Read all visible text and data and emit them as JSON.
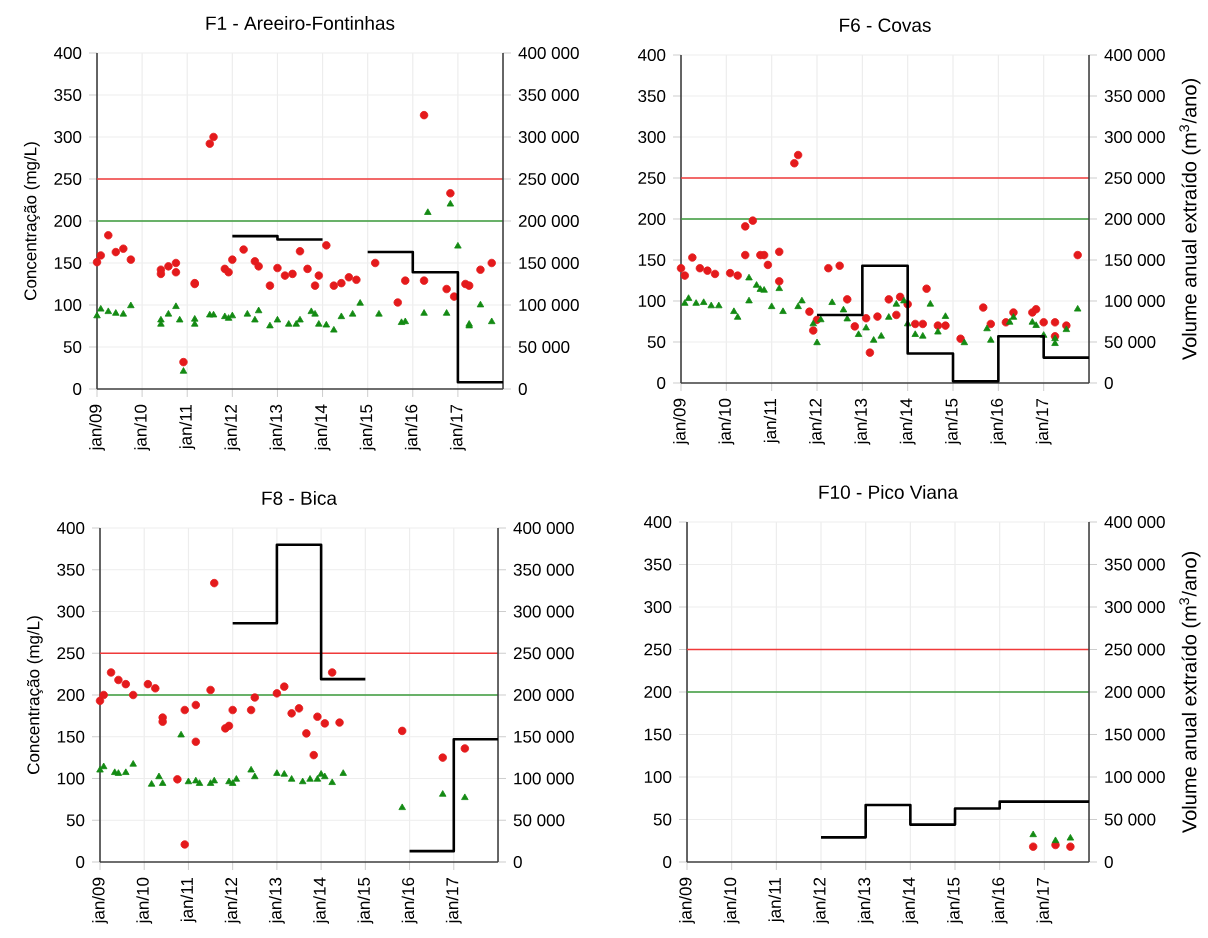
{
  "chart_data": [
    {
      "type": "scatter",
      "title": "F1 - Areeiro-Fontinhas",
      "ylabel": "Concentração (mg/L)",
      "grid": true,
      "xlim": [
        "2009-01",
        "2018-01"
      ],
      "xticks": [
        {
          "value": "2009-01",
          "label": "jan/09"
        },
        {
          "value": "2010-01",
          "label": "jan/10"
        },
        {
          "value": "2011-01",
          "label": "jan/11"
        },
        {
          "value": "2012-01",
          "label": "jan/12"
        },
        {
          "value": "2013-01",
          "label": "jan/13"
        },
        {
          "value": "2014-01",
          "label": "jan/14"
        },
        {
          "value": "2015-01",
          "label": "jan/15"
        },
        {
          "value": "2016-01",
          "label": "jan/16"
        },
        {
          "value": "2017-01",
          "label": "jan/17"
        }
      ],
      "ylim": [
        0,
        400
      ],
      "yticks": [
        0,
        50,
        100,
        150,
        200,
        250,
        300,
        350,
        400
      ],
      "y2lim": [
        0,
        400000
      ],
      "y2ticks": [
        0,
        {
          "value": 50000,
          "label": "50 000"
        },
        {
          "value": 100000,
          "label": "100 000"
        },
        {
          "value": 150000,
          "label": "150 000"
        },
        {
          "value": 200000,
          "label": "200 000"
        },
        {
          "value": 250000,
          "label": "250 000"
        },
        {
          "value": 300000,
          "label": "300 000"
        },
        {
          "value": 350000,
          "label": "350 000"
        },
        {
          "value": 400000,
          "label": "400 000"
        }
      ],
      "ref_lines": [
        {
          "axis": "y",
          "value": 250,
          "color": "#f03a3a"
        },
        {
          "axis": "y",
          "value": 200,
          "color": "#3a9a3a"
        }
      ],
      "series": [
        {
          "color": "#e41a1c",
          "marker": "circle",
          "x": [
            "2009-01",
            "2009-02",
            "2009-04",
            "2009-06",
            "2009-08",
            "2009-10",
            "2010-06",
            "2010-06",
            "2010-08",
            "2010-10",
            "2010-10",
            "2010-12",
            "2011-03",
            "2011-03",
            "2011-07",
            "2011-08",
            "2011-11",
            "2011-12",
            "2012-01",
            "2012-04",
            "2012-07",
            "2012-08",
            "2012-11",
            "2013-01",
            "2013-03",
            "2013-05",
            "2013-07",
            "2013-09",
            "2013-11",
            "2013-12",
            "2014-02",
            "2014-04",
            "2014-06",
            "2014-08",
            "2014-10",
            "2015-03",
            "2015-09",
            "2015-11",
            "2016-04",
            "2016-04",
            "2016-10",
            "2016-11",
            "2016-12",
            "2017-03",
            "2017-04",
            "2017-07",
            "2017-10"
          ],
          "values": [
            151,
            159,
            183,
            163,
            167,
            154,
            142,
            137,
            146,
            150,
            139,
            32,
            125,
            126,
            292,
            300,
            143,
            139,
            154,
            166,
            152,
            146,
            123,
            144,
            135,
            137,
            164,
            143,
            123,
            135,
            171,
            123,
            126,
            133,
            130,
            150,
            103,
            129,
            129,
            326,
            119,
            233,
            110,
            125,
            123,
            142,
            150
          ]
        },
        {
          "color": "#138a13",
          "marker": "triangle",
          "x": [
            "2009-01",
            "2009-02",
            "2009-04",
            "2009-06",
            "2009-08",
            "2009-10",
            "2010-06",
            "2010-06",
            "2010-08",
            "2010-10",
            "2010-11",
            "2010-12",
            "2011-03",
            "2011-03",
            "2011-07",
            "2011-08",
            "2011-11",
            "2011-12",
            "2012-01",
            "2012-05",
            "2012-07",
            "2012-08",
            "2012-11",
            "2013-01",
            "2013-04",
            "2013-06",
            "2013-07",
            "2013-10",
            "2013-11",
            "2013-12",
            "2014-02",
            "2014-04",
            "2014-06",
            "2014-09",
            "2014-11",
            "2015-04",
            "2015-10",
            "2015-11",
            "2016-04",
            "2016-05",
            "2016-10",
            "2016-11",
            "2017-01",
            "2017-04",
            "2017-04",
            "2017-07",
            "2017-10"
          ],
          "values": [
            87,
            95,
            92,
            90,
            89,
            99,
            82,
            77,
            89,
            98,
            82,
            21,
            83,
            77,
            88,
            88,
            86,
            84,
            87,
            89,
            82,
            93,
            75,
            82,
            77,
            77,
            82,
            92,
            89,
            77,
            76,
            70,
            86,
            89,
            102,
            89,
            79,
            80,
            90,
            210,
            90,
            220,
            170,
            75,
            77,
            100,
            80
          ]
        },
        {
          "type": "step",
          "axis": "y2",
          "color": "#000000",
          "x": [
            "2012-01",
            "2013-01",
            "2014-01",
            "2015-01",
            "2016-01",
            "2017-01",
            "2018-01"
          ],
          "values": [
            182000,
            178000,
            null,
            163000,
            139000,
            8000,
            8000
          ]
        }
      ]
    },
    {
      "type": "scatter",
      "title": "F6 - Covas",
      "y2label": "Volume anual extraído (m$^{3}$/ano)",
      "grid": true,
      "xlim": [
        "2009-01",
        "2018-01"
      ],
      "xticks": [
        {
          "value": "2009-01",
          "label": "jan/09"
        },
        {
          "value": "2010-01",
          "label": "jan/10"
        },
        {
          "value": "2011-01",
          "label": "jan/11"
        },
        {
          "value": "2012-01",
          "label": "jan/12"
        },
        {
          "value": "2013-01",
          "label": "jan/13"
        },
        {
          "value": "2014-01",
          "label": "jan/14"
        },
        {
          "value": "2015-01",
          "label": "jan/15"
        },
        {
          "value": "2016-01",
          "label": "jan/16"
        },
        {
          "value": "2017-01",
          "label": "jan/17"
        }
      ],
      "ylim": [
        0,
        400
      ],
      "yticks": [
        0,
        50,
        100,
        150,
        200,
        250,
        300,
        350,
        400
      ],
      "y2lim": [
        0,
        400000
      ],
      "y2ticks": [
        0,
        {
          "value": 50000,
          "label": "50 000"
        },
        {
          "value": 100000,
          "label": "100 000"
        },
        {
          "value": 150000,
          "label": "150 000"
        },
        {
          "value": 200000,
          "label": "200 000"
        },
        {
          "value": 250000,
          "label": "250 000"
        },
        {
          "value": 300000,
          "label": "300 000"
        },
        {
          "value": 350000,
          "label": "350 000"
        },
        {
          "value": 400000,
          "label": "400 000"
        }
      ],
      "ref_lines": [
        {
          "axis": "y",
          "value": 250,
          "color": "#f03a3a"
        },
        {
          "axis": "y",
          "value": 200,
          "color": "#3a9a3a"
        }
      ],
      "series": [
        {
          "color": "#e41a1c",
          "marker": "circle",
          "x": [
            "2009-01",
            "2009-02",
            "2009-04",
            "2009-06",
            "2009-08",
            "2009-10",
            "2010-02",
            "2010-04",
            "2010-06",
            "2010-06",
            "2010-08",
            "2010-10",
            "2010-11",
            "2010-12",
            "2011-03",
            "2011-03",
            "2011-07",
            "2011-08",
            "2011-11",
            "2011-12",
            "2012-01",
            "2012-04",
            "2012-07",
            "2012-09",
            "2012-11",
            "2013-02",
            "2013-03",
            "2013-05",
            "2013-08",
            "2013-10",
            "2013-11",
            "2014-01",
            "2014-03",
            "2014-05",
            "2014-06",
            "2014-09",
            "2014-11",
            "2015-03",
            "2015-09",
            "2015-11",
            "2016-03",
            "2016-05",
            "2016-10",
            "2016-11",
            "2017-01",
            "2017-04",
            "2017-04",
            "2017-07",
            "2017-10"
          ],
          "values": [
            140,
            131,
            153,
            140,
            137,
            133,
            134,
            131,
            191,
            156,
            198,
            156,
            156,
            144,
            160,
            124,
            268,
            278,
            87,
            64,
            77,
            140,
            143,
            102,
            69,
            79,
            37,
            81,
            102,
            83,
            105,
            96,
            72,
            72,
            115,
            70,
            70,
            54,
            92,
            72,
            74,
            86,
            86,
            90,
            74,
            74,
            57,
            70,
            156
          ]
        },
        {
          "color": "#138a13",
          "marker": "triangle",
          "x": [
            "2009-02",
            "2009-03",
            "2009-05",
            "2009-07",
            "2009-09",
            "2009-11",
            "2010-03",
            "2010-04",
            "2010-07",
            "2010-07",
            "2010-09",
            "2010-10",
            "2010-11",
            "2011-01",
            "2011-03",
            "2011-04",
            "2011-08",
            "2011-09",
            "2011-12",
            "2012-01",
            "2012-02",
            "2012-05",
            "2012-08",
            "2012-09",
            "2012-12",
            "2013-02",
            "2013-04",
            "2013-06",
            "2013-08",
            "2013-10",
            "2013-12",
            "2014-01",
            "2014-03",
            "2014-05",
            "2014-07",
            "2014-09",
            "2014-11",
            "2015-04",
            "2015-10",
            "2015-11",
            "2016-04",
            "2016-05",
            "2016-10",
            "2016-11",
            "2017-01",
            "2017-04",
            "2017-04",
            "2017-07",
            "2017-10"
          ],
          "values": [
            97,
            103,
            97,
            98,
            94,
            94,
            87,
            80,
            128,
            100,
            119,
            114,
            113,
            93,
            115,
            87,
            93,
            100,
            72,
            49,
            77,
            98,
            89,
            78,
            59,
            67,
            52,
            57,
            80,
            96,
            100,
            72,
            59,
            57,
            96,
            62,
            81,
            49,
            66,
            52,
            74,
            80,
            74,
            70,
            58,
            54,
            48,
            65,
            90
          ]
        },
        {
          "type": "step",
          "axis": "y2",
          "color": "#000000",
          "x": [
            "2012-01",
            "2013-01",
            "2014-01",
            "2015-01",
            "2016-01",
            "2017-01",
            "2018-01"
          ],
          "values": [
            83000,
            143000,
            36000,
            2000,
            57000,
            31000,
            31000
          ]
        }
      ]
    },
    {
      "type": "scatter",
      "title": "F8 - Bica",
      "ylabel": "Concentração (mg/L)",
      "grid": true,
      "xlim": [
        "2009-01",
        "2018-01"
      ],
      "xticks": [
        {
          "value": "2009-01",
          "label": "jan/09"
        },
        {
          "value": "2010-01",
          "label": "jan/10"
        },
        {
          "value": "2011-01",
          "label": "jan/11"
        },
        {
          "value": "2012-01",
          "label": "jan/12"
        },
        {
          "value": "2013-01",
          "label": "jan/13"
        },
        {
          "value": "2014-01",
          "label": "jan/14"
        },
        {
          "value": "2015-01",
          "label": "jan/15"
        },
        {
          "value": "2016-01",
          "label": "jan/16"
        },
        {
          "value": "2017-01",
          "label": "jan/17"
        }
      ],
      "ylim": [
        0,
        400
      ],
      "yticks": [
        0,
        50,
        100,
        150,
        200,
        250,
        300,
        350,
        400
      ],
      "y2lim": [
        0,
        400000
      ],
      "y2ticks": [
        0,
        {
          "value": 50000,
          "label": "50 000"
        },
        {
          "value": 100000,
          "label": "100 000"
        },
        {
          "value": 150000,
          "label": "150 000"
        },
        {
          "value": 200000,
          "label": "200 000"
        },
        {
          "value": 250000,
          "label": "250 000"
        },
        {
          "value": 300000,
          "label": "300 000"
        },
        {
          "value": 350000,
          "label": "350 000"
        },
        {
          "value": 400000,
          "label": "400 000"
        }
      ],
      "ref_lines": [
        {
          "axis": "y",
          "value": 250,
          "color": "#f03a3a"
        },
        {
          "axis": "y",
          "value": 200,
          "color": "#3a9a3a"
        }
      ],
      "series": [
        {
          "color": "#e41a1c",
          "marker": "circle",
          "x": [
            "2009-01",
            "2009-02",
            "2009-04",
            "2009-06",
            "2009-08",
            "2009-10",
            "2010-02",
            "2010-04",
            "2010-06",
            "2010-06",
            "2010-10",
            "2010-12",
            "2010-12",
            "2011-03",
            "2011-03",
            "2011-07",
            "2011-08",
            "2011-11",
            "2011-12",
            "2012-01",
            "2012-06",
            "2012-07",
            "2013-01",
            "2013-03",
            "2013-05",
            "2013-07",
            "2013-09",
            "2013-11",
            "2013-12",
            "2014-02",
            "2014-04",
            "2014-06",
            "2015-11",
            "2016-10",
            "2017-04"
          ],
          "values": [
            193,
            200,
            227,
            218,
            213,
            200,
            213,
            208,
            173,
            168,
            99,
            21,
            182,
            144,
            188,
            206,
            334,
            160,
            163,
            182,
            182,
            197,
            202,
            210,
            178,
            184,
            154,
            128,
            174,
            166,
            227,
            167,
            157,
            125,
            136
          ]
        },
        {
          "color": "#138a13",
          "marker": "triangle",
          "x": [
            "2009-01",
            "2009-02",
            "2009-05",
            "2009-06",
            "2009-08",
            "2009-10",
            "2010-03",
            "2010-05",
            "2010-06",
            "2010-11",
            "2011-01",
            "2011-03",
            "2011-04",
            "2011-07",
            "2011-08",
            "2011-12",
            "2012-01",
            "2012-02",
            "2012-06",
            "2012-07",
            "2013-01",
            "2013-03",
            "2013-05",
            "2013-08",
            "2013-10",
            "2013-12",
            "2014-01",
            "2014-02",
            "2014-04",
            "2014-07",
            "2015-11",
            "2016-10",
            "2017-04"
          ],
          "values": [
            110,
            114,
            107,
            106,
            107,
            117,
            93,
            102,
            94,
            152,
            96,
            97,
            94,
            94,
            97,
            96,
            94,
            99,
            110,
            102,
            106,
            105,
            99,
            96,
            99,
            99,
            105,
            102,
            95,
            106,
            65,
            81,
            77
          ]
        },
        {
          "type": "step",
          "axis": "y2",
          "color": "#000000",
          "x": [
            "2012-01",
            "2013-01",
            "2014-01",
            "2015-01",
            "2016-01",
            "2017-01",
            "2018-01"
          ],
          "values": [
            286000,
            380000,
            219000,
            null,
            13000,
            147000,
            147000
          ]
        }
      ]
    },
    {
      "type": "scatter",
      "title": "F10 - Pico Viana",
      "y2label": "Volume anual extraído (m$^{3}$/ano)",
      "grid": true,
      "xlim": [
        "2009-01",
        "2018-01"
      ],
      "xticks": [
        {
          "value": "2009-01",
          "label": "jan/09"
        },
        {
          "value": "2010-01",
          "label": "jan/10"
        },
        {
          "value": "2011-01",
          "label": "jan/11"
        },
        {
          "value": "2012-01",
          "label": "jan/12"
        },
        {
          "value": "2013-01",
          "label": "jan/13"
        },
        {
          "value": "2014-01",
          "label": "jan/14"
        },
        {
          "value": "2015-01",
          "label": "jan/15"
        },
        {
          "value": "2016-01",
          "label": "jan/16"
        },
        {
          "value": "2017-01",
          "label": "jan/17"
        }
      ],
      "ylim": [
        0,
        400
      ],
      "yticks": [
        0,
        50,
        100,
        150,
        200,
        250,
        300,
        350,
        400
      ],
      "y2lim": [
        0,
        400000
      ],
      "y2ticks": [
        0,
        {
          "value": 50000,
          "label": "50 000"
        },
        {
          "value": 100000,
          "label": "100 000"
        },
        {
          "value": 150000,
          "label": "150 000"
        },
        {
          "value": 200000,
          "label": "200 000"
        },
        {
          "value": 250000,
          "label": "250 000"
        },
        {
          "value": 300000,
          "label": "300 000"
        },
        {
          "value": 350000,
          "label": "350 000"
        },
        {
          "value": 400000,
          "label": "400 000"
        }
      ],
      "ref_lines": [
        {
          "axis": "y",
          "value": 250,
          "color": "#f03a3a"
        },
        {
          "axis": "y",
          "value": 200,
          "color": "#3a9a3a"
        }
      ],
      "series": [
        {
          "color": "#e41a1c",
          "marker": "circle",
          "x": [
            "2016-10",
            "2017-04",
            "2017-08"
          ],
          "values": [
            18,
            20,
            18
          ]
        },
        {
          "color": "#138a13",
          "marker": "triangle",
          "x": [
            "2016-10",
            "2017-04",
            "2017-08"
          ],
          "values": [
            32,
            25,
            28
          ]
        },
        {
          "type": "step",
          "axis": "y2",
          "color": "#000000",
          "x": [
            "2012-01",
            "2013-01",
            "2014-01",
            "2015-01",
            "2016-01",
            "2017-01",
            "2018-01"
          ],
          "values": [
            29000,
            67000,
            44000,
            63000,
            71000,
            71000,
            71000
          ]
        }
      ]
    }
  ]
}
